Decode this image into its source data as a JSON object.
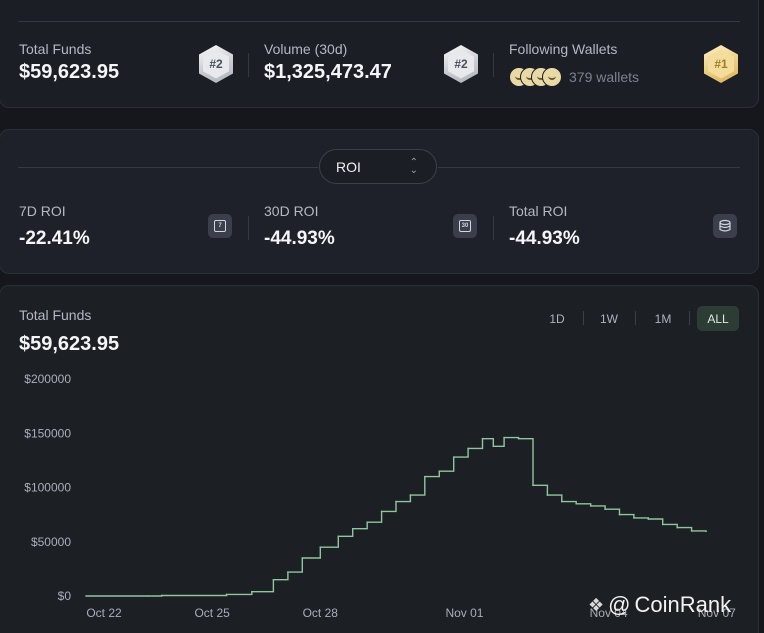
{
  "stats": {
    "total_funds": {
      "label": "Total Funds",
      "value": "$59,623.95",
      "rank": "#2"
    },
    "volume": {
      "label": "Volume (30d)",
      "value": "$1,325,473.47",
      "rank": "#2"
    },
    "following": {
      "label": "Following Wallets",
      "count_text": "379 wallets",
      "rank": "#1"
    }
  },
  "roi": {
    "selector_label": "ROI",
    "items": [
      {
        "label": "7D ROI",
        "value": "-22.41%",
        "icon_text": "7",
        "icon": "calendar-7-icon"
      },
      {
        "label": "30D ROI",
        "value": "-44.93%",
        "icon_text": "30",
        "icon": "calendar-30-icon"
      },
      {
        "label": "Total ROI",
        "value": "-44.93%",
        "icon": "coin-stack-icon"
      }
    ]
  },
  "chart_panel": {
    "title": "Total Funds",
    "value": "$59,623.95",
    "ranges": [
      "1D",
      "1W",
      "1M",
      "ALL"
    ],
    "active_range": "ALL"
  },
  "colors": {
    "line": "#8fc79c",
    "background": "#1c1f23",
    "active_range_bg": "#2c3d35"
  },
  "watermark": {
    "brand": "CoinRank",
    "mark": "@"
  },
  "chart_data": {
    "type": "line",
    "title": "",
    "xlabel": "",
    "ylabel": "",
    "ylim": [
      0,
      200000
    ],
    "xlim": [
      0,
      17.2
    ],
    "y_ticks": [
      0,
      50000,
      100000,
      150000,
      200000
    ],
    "y_tick_labels": [
      "$0",
      "$50000",
      "$100000",
      "$150000",
      "$200000"
    ],
    "x_ticks": [
      0,
      3,
      6,
      10,
      14,
      17
    ],
    "x_tick_labels": [
      "Oct 22",
      "Oct 25",
      "Oct 28",
      "Nov 01",
      "Nov 04",
      "Nov 07"
    ],
    "grid": false,
    "series": [
      {
        "values": [
          [
            0.0,
            0
          ],
          [
            1.7,
            0
          ],
          [
            2.1,
            500
          ],
          [
            3.9,
            1500
          ],
          [
            4.6,
            4000
          ],
          [
            5.2,
            15000
          ],
          [
            5.6,
            22000
          ],
          [
            6.0,
            35000
          ],
          [
            6.5,
            45000
          ],
          [
            7.0,
            55000
          ],
          [
            7.4,
            62000
          ],
          [
            7.8,
            68000
          ],
          [
            8.2,
            78000
          ],
          [
            8.6,
            87000
          ],
          [
            9.0,
            93000
          ],
          [
            9.4,
            110000
          ],
          [
            9.8,
            115000
          ],
          [
            10.2,
            128000
          ],
          [
            10.6,
            136000
          ],
          [
            11.0,
            145000
          ],
          [
            11.3,
            138000
          ],
          [
            11.6,
            146000
          ],
          [
            12.0,
            145000
          ],
          [
            12.4,
            102000
          ],
          [
            12.8,
            93000
          ],
          [
            13.2,
            87000
          ],
          [
            13.6,
            85000
          ],
          [
            14.0,
            83000
          ],
          [
            14.4,
            80000
          ],
          [
            14.8,
            75000
          ],
          [
            15.2,
            72000
          ],
          [
            15.6,
            71000
          ],
          [
            16.0,
            66000
          ],
          [
            16.4,
            63000
          ],
          [
            16.8,
            60000
          ],
          [
            17.2,
            59600
          ]
        ]
      }
    ]
  }
}
